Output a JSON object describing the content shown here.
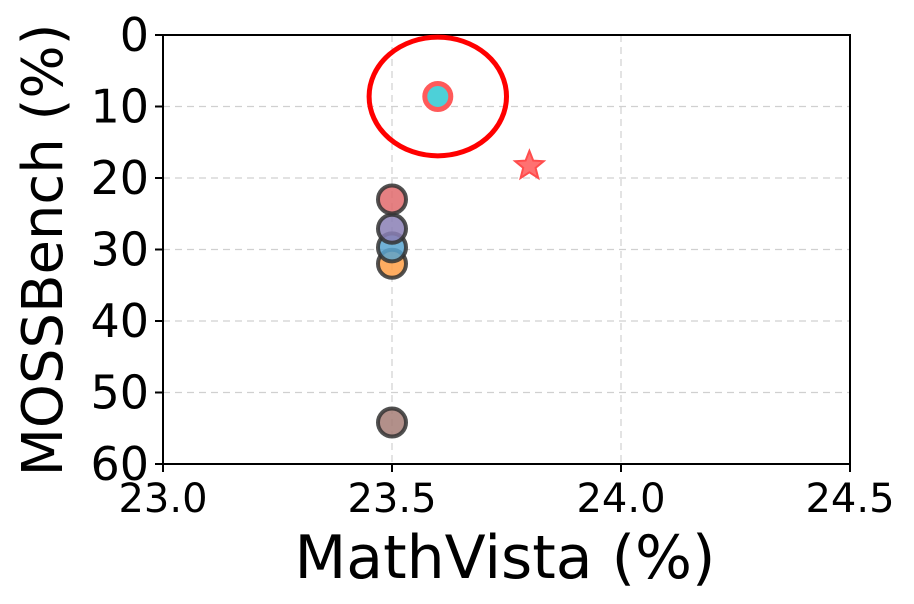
{
  "chart_data": {
    "type": "scatter",
    "title": "",
    "xlabel": "MathVista (%)",
    "ylabel": "MOSSBench (%)",
    "xlim": [
      23.0,
      24.5
    ],
    "ylim": [
      60,
      0
    ],
    "y_inverted": true,
    "xticks": [
      "23.0",
      "23.5",
      "24.0",
      "24.5"
    ],
    "yticks": [
      "0",
      "10",
      "20",
      "30",
      "40",
      "50",
      "60"
    ],
    "grid": true,
    "legend": "none",
    "points": [
      {
        "x": 23.5,
        "y": 54.2,
        "color": "#a47d76",
        "marker": "circle"
      },
      {
        "x": 23.5,
        "y": 32.0,
        "color": "#ff9f45",
        "marker": "circle"
      },
      {
        "x": 23.5,
        "y": 29.7,
        "color": "#58a3cf",
        "marker": "circle"
      },
      {
        "x": 23.5,
        "y": 27.1,
        "color": "#8a7fb5",
        "marker": "circle"
      },
      {
        "x": 23.5,
        "y": 23.0,
        "color": "#e06a6c",
        "marker": "circle"
      },
      {
        "x": 23.6,
        "y": 8.6,
        "color": "#4dd0d8",
        "marker": "circle-highlight"
      },
      {
        "x": 23.8,
        "y": 18.3,
        "color": "#ff4d4d",
        "marker": "star"
      }
    ],
    "annotations": [
      {
        "type": "ellipse",
        "cx": 23.6,
        "cy": 8.6,
        "rx": 0.15,
        "ry": 8.3,
        "color": "#ff0000"
      }
    ]
  }
}
